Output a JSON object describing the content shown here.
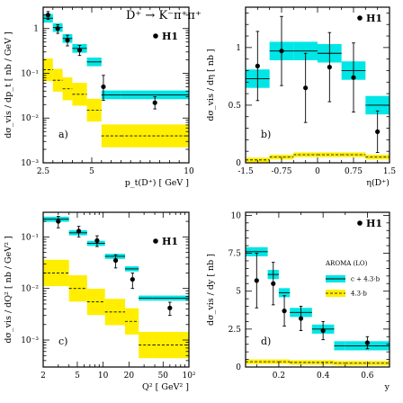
{
  "process_label": "D⁺ → K⁻π⁺π⁺",
  "colors": {
    "cyan_band": "#00e5e5",
    "yellow_band": "#ffee00",
    "data_points": "#000000"
  },
  "chart_data": [
    {
      "type": "scatter",
      "panel": "a)",
      "legend_entry": "H1",
      "ylabel": "dσ_vis / dp_t [ nb / GeV ]",
      "xlabel": "p_t(D⁺) [ GeV ]",
      "xscale": "linear",
      "yscale": "log",
      "xlim": [
        2.5,
        10
      ],
      "ylim": [
        0.001,
        3
      ],
      "x_ticks": [
        "2.5",
        "5",
        "10"
      ],
      "y_ticks": [
        "1",
        "10⁻¹",
        "10⁻²",
        "10⁻³"
      ],
      "bins": [
        [
          2.5,
          3.0
        ],
        [
          3.0,
          3.5
        ],
        [
          3.5,
          4.0
        ],
        [
          4.0,
          4.75
        ],
        [
          4.75,
          5.5
        ],
        [
          5.5,
          6.5
        ],
        [
          6.5,
          10.0
        ]
      ],
      "data": [
        {
          "x": 2.75,
          "y": 2.0,
          "err_lo": 0.4,
          "err_hi": 0.4
        },
        {
          "x": 3.25,
          "y": 1.0,
          "err_lo": 0.22,
          "err_hi": 0.22
        },
        {
          "x": 3.75,
          "y": 0.55,
          "err_lo": 0.14,
          "err_hi": 0.16
        },
        {
          "x": 4.375,
          "y": 0.33,
          "err_lo": 0.08,
          "err_hi": 0.09
        },
        {
          "x": 5.6,
          "y": 0.05,
          "err_lo": 0.025,
          "err_hi": 0.04
        },
        {
          "x": 8.25,
          "y": 0.022,
          "err_lo": 0.006,
          "err_hi": 0.008
        }
      ],
      "series": [
        {
          "name": "c + 4.3·b",
          "band": "cyan",
          "center": [
            1.7,
            1.05,
            0.6,
            0.36,
            0.18,
            0.033,
            0.033
          ],
          "half_width_factor": 1.25
        },
        {
          "name": "4.3·b",
          "band": "yellow",
          "center": [
            0.12,
            0.07,
            0.045,
            0.034,
            0.015,
            0.004,
            0.004
          ],
          "half_width_factor": 1.8
        }
      ]
    },
    {
      "type": "scatter",
      "panel": "b)",
      "legend_entry": "H1",
      "ylabel": "dσ_vis / dη [ nb ]",
      "xlabel": "η(D⁺)",
      "xscale": "linear",
      "yscale": "linear",
      "xlim": [
        -1.5,
        1.5
      ],
      "ylim": [
        0,
        1.35
      ],
      "x_ticks": [
        "-1.5",
        "-0.75",
        "0",
        "0.75",
        "1.5"
      ],
      "y_ticks": [
        "0",
        "0.5",
        "1"
      ],
      "bins": [
        [
          -1.5,
          -1.0
        ],
        [
          -1.0,
          -0.5
        ],
        [
          -0.5,
          0.0
        ],
        [
          0.0,
          0.5
        ],
        [
          0.5,
          1.0
        ],
        [
          1.0,
          1.5
        ]
      ],
      "data": [
        {
          "x": -1.25,
          "y": 0.84,
          "err_lo": 0.3,
          "err_hi": 0.3
        },
        {
          "x": -0.75,
          "y": 0.97,
          "err_lo": 0.3,
          "err_hi": 0.3
        },
        {
          "x": -0.25,
          "y": 0.65,
          "err_lo": 0.3,
          "err_hi": 0.3
        },
        {
          "x": 0.25,
          "y": 0.83,
          "err_lo": 0.3,
          "err_hi": 0.3
        },
        {
          "x": 0.75,
          "y": 0.74,
          "err_lo": 0.3,
          "err_hi": 0.3
        },
        {
          "x": 1.25,
          "y": 0.27,
          "err_lo": 0.18,
          "err_hi": 0.18
        }
      ],
      "series": [
        {
          "name": "c + 4.3·b",
          "band": "cyan",
          "center": [
            0.73,
            0.97,
            0.97,
            0.95,
            0.8,
            0.5
          ],
          "half_width": 0.08
        },
        {
          "name": "4.3·b",
          "band": "yellow",
          "center": [
            0.025,
            0.05,
            0.07,
            0.07,
            0.07,
            0.05
          ],
          "half_width": 0.02
        }
      ]
    },
    {
      "type": "scatter",
      "panel": "c)",
      "legend_entry": "H1",
      "ylabel": "dσ_vis / dQ² [ nb / GeV² ]",
      "xlabel": "Q² [ GeV² ]",
      "xscale": "log",
      "yscale": "log",
      "xlim": [
        2,
        100
      ],
      "ylim": [
        0.0003,
        0.3
      ],
      "x_ticks": [
        "2",
        "5",
        "10",
        "20",
        "50",
        "10²"
      ],
      "y_ticks": [
        "10⁻¹",
        "10⁻²",
        "10⁻³"
      ],
      "bins": [
        [
          2,
          4
        ],
        [
          4,
          6.5
        ],
        [
          6.5,
          10.5
        ],
        [
          10.5,
          18
        ],
        [
          18,
          26
        ],
        [
          26,
          38
        ],
        [
          38,
          100
        ]
      ],
      "data": [
        {
          "x": 3,
          "y": 0.2,
          "err_lo": 0.05,
          "err_hi": 0.05
        },
        {
          "x": 5.2,
          "y": 0.13,
          "err_lo": 0.03,
          "err_hi": 0.03
        },
        {
          "x": 8.5,
          "y": 0.085,
          "err_lo": 0.02,
          "err_hi": 0.02
        },
        {
          "x": 14,
          "y": 0.035,
          "err_lo": 0.01,
          "err_hi": 0.01
        },
        {
          "x": 22,
          "y": 0.015,
          "err_lo": 0.005,
          "err_hi": 0.005
        },
        {
          "x": 60,
          "y": 0.0042,
          "err_lo": 0.0012,
          "err_hi": 0.0012
        }
      ],
      "series": [
        {
          "name": "c + 4.3·b",
          "band": "cyan",
          "center": [
            0.22,
            0.12,
            0.075,
            0.042,
            0.024,
            0.0065,
            0.0065
          ],
          "half_width_factor": 1.12
        },
        {
          "name": "4.3·b",
          "band": "yellow",
          "center": [
            0.02,
            0.01,
            0.0055,
            0.0035,
            0.0023,
            0.0008,
            0.0008
          ],
          "half_width_factor": 1.8
        }
      ]
    },
    {
      "type": "scatter",
      "panel": "d)",
      "legend_entry": "H1",
      "legend_title": "AROMA (LO)",
      "ylabel": "dσ_vis / dy [ nb ]",
      "xlabel": "y",
      "xscale": "linear",
      "yscale": "linear",
      "xlim": [
        0.05,
        0.7
      ],
      "ylim": [
        0,
        10.2
      ],
      "x_ticks": [
        "0.2",
        "0.4",
        "0.6"
      ],
      "y_ticks": [
        "0",
        "2.5",
        "5",
        "7.5",
        "10"
      ],
      "bins": [
        [
          0.05,
          0.15
        ],
        [
          0.15,
          0.2
        ],
        [
          0.2,
          0.25
        ],
        [
          0.25,
          0.35
        ],
        [
          0.35,
          0.45
        ],
        [
          0.45,
          0.5
        ],
        [
          0.5,
          0.7
        ]
      ],
      "data": [
        {
          "x": 0.1,
          "y": 5.7,
          "err_lo": 1.8,
          "err_hi": 1.8
        },
        {
          "x": 0.175,
          "y": 5.5,
          "err_lo": 1.4,
          "err_hi": 1.4
        },
        {
          "x": 0.225,
          "y": 3.7,
          "err_lo": 1.0,
          "err_hi": 1.0
        },
        {
          "x": 0.3,
          "y": 3.2,
          "err_lo": 0.8,
          "err_hi": 0.8
        },
        {
          "x": 0.4,
          "y": 2.4,
          "err_lo": 0.6,
          "err_hi": 0.6
        },
        {
          "x": 0.6,
          "y": 1.6,
          "err_lo": 0.4,
          "err_hi": 0.4
        }
      ],
      "series": [
        {
          "name": "c + 4.3·b",
          "band": "cyan",
          "center": [
            7.6,
            6.1,
            4.9,
            3.6,
            2.5,
            1.4,
            1.4
          ],
          "half_width": 0.3
        },
        {
          "name": "4.3·b",
          "band": "yellow",
          "center": [
            0.35,
            0.35,
            0.35,
            0.3,
            0.3,
            0.25,
            0.25
          ],
          "half_width": 0.15
        }
      ]
    }
  ]
}
